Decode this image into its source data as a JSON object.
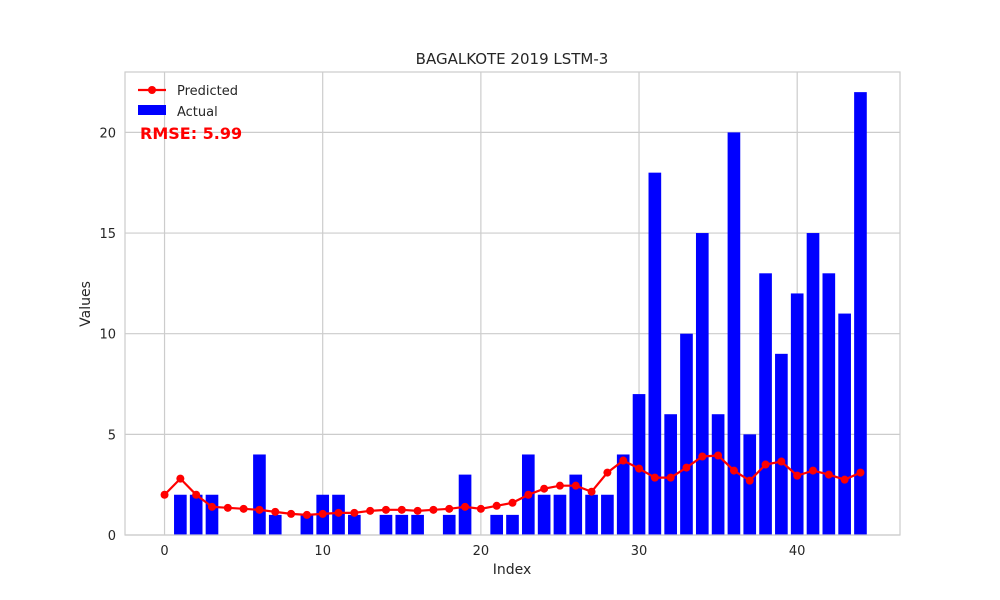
{
  "chart_data": {
    "type": "bar",
    "title": "BAGALKOTE 2019 LSTM-3",
    "xlabel": "Index",
    "ylabel": "Values",
    "xlim": [
      -2.5,
      46.5
    ],
    "ylim": [
      0,
      23
    ],
    "xticks": [
      0,
      10,
      20,
      30,
      40
    ],
    "yticks": [
      0,
      5,
      10,
      15,
      20
    ],
    "grid": true,
    "legend": "top-left",
    "annotation": "RMSE: 5.99",
    "colors": {
      "actual": "#0000ff",
      "predicted": "#ff0000",
      "annotation": "#ff0000",
      "grid": "#cccccc",
      "frame": "#cccccc"
    },
    "series": [
      {
        "name": "Predicted",
        "type": "line",
        "x": [
          0,
          1,
          2,
          3,
          4,
          5,
          6,
          7,
          8,
          9,
          10,
          11,
          12,
          13,
          14,
          15,
          16,
          17,
          18,
          19,
          20,
          21,
          22,
          23,
          24,
          25,
          26,
          27,
          28,
          29,
          30,
          31,
          32,
          33,
          34,
          35,
          36,
          37,
          38,
          39,
          40,
          41,
          42,
          43,
          44
        ],
        "values": [
          2.0,
          2.8,
          2.0,
          1.4,
          1.35,
          1.3,
          1.25,
          1.15,
          1.05,
          1.0,
          1.05,
          1.1,
          1.1,
          1.2,
          1.25,
          1.25,
          1.2,
          1.25,
          1.3,
          1.4,
          1.3,
          1.45,
          1.6,
          2.0,
          2.3,
          2.45,
          2.45,
          2.15,
          3.1,
          3.7,
          3.3,
          2.85,
          2.85,
          3.35,
          3.9,
          3.95,
          3.2,
          2.7,
          3.5,
          3.65,
          2.95,
          3.2,
          3.0,
          2.75,
          3.1
        ]
      },
      {
        "name": "Actual",
        "type": "bar",
        "x": [
          0,
          1,
          2,
          3,
          4,
          5,
          6,
          7,
          8,
          9,
          10,
          11,
          12,
          13,
          14,
          15,
          16,
          17,
          18,
          19,
          20,
          21,
          22,
          23,
          24,
          25,
          26,
          27,
          28,
          29,
          30,
          31,
          32,
          33,
          34,
          35,
          36,
          37,
          38,
          39,
          40,
          41,
          42,
          43,
          44
        ],
        "values": [
          0,
          2,
          2,
          2,
          0,
          0,
          4,
          1,
          0,
          1,
          2,
          2,
          1,
          0,
          1,
          1,
          1,
          0,
          1,
          3,
          0,
          1,
          1,
          4,
          2,
          2,
          3,
          2,
          2,
          4,
          7,
          18,
          6,
          10,
          15,
          6,
          20,
          5,
          13,
          9,
          12,
          15,
          13,
          11,
          22
        ]
      }
    ]
  }
}
